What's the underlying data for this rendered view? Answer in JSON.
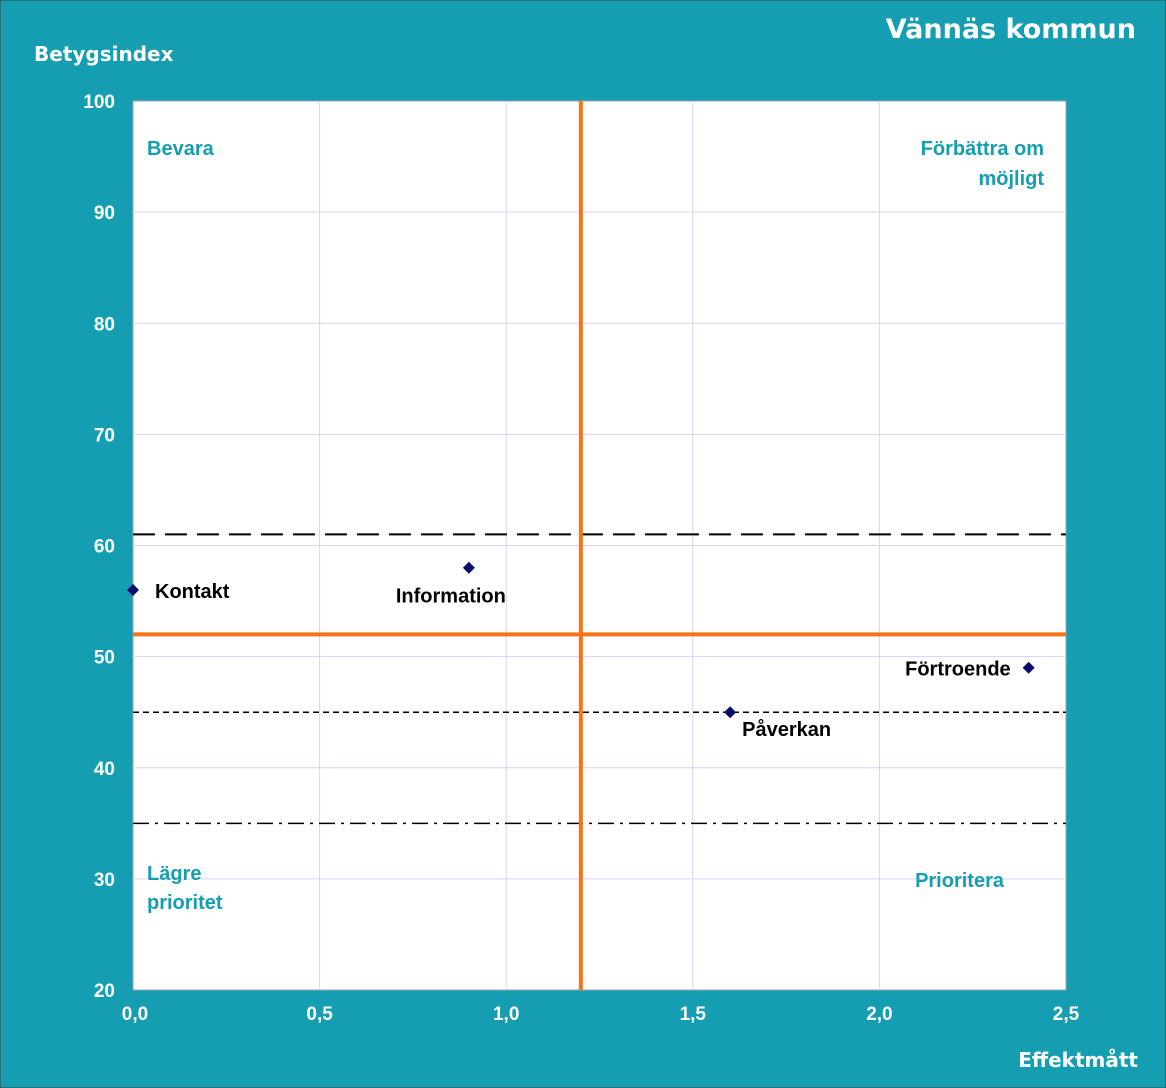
{
  "chart_data": {
    "type": "scatter",
    "title": "Vännäs kommun",
    "xlabel": "Effektmått",
    "ylabel": "Betygsindex",
    "xlim": [
      0,
      2.5
    ],
    "ylim": [
      20,
      100
    ],
    "x_ticks": [
      "0,0",
      "0,5",
      "1,0",
      "1,5",
      "2,0",
      "2,5"
    ],
    "x_tick_values": [
      0,
      0.5,
      1.0,
      1.5,
      2.0,
      2.5
    ],
    "y_ticks": [
      "20",
      "30",
      "40",
      "50",
      "60",
      "70",
      "80",
      "90",
      "100"
    ],
    "y_tick_values": [
      20,
      30,
      40,
      50,
      60,
      70,
      80,
      90,
      100
    ],
    "grid": true,
    "points": [
      {
        "label": "Kontakt",
        "x": 0.0,
        "y": 56
      },
      {
        "label": "Information",
        "x": 0.9,
        "y": 58
      },
      {
        "label": "Påverkan",
        "x": 1.6,
        "y": 45
      },
      {
        "label": "Förtroende",
        "x": 2.4,
        "y": 49
      }
    ],
    "vertical_line": {
      "x": 1.2
    },
    "horizontal_line": {
      "y": 52
    },
    "reference_lines": [
      {
        "y": 61,
        "style": "long-dash"
      },
      {
        "y": 45,
        "style": "short-dash"
      },
      {
        "y": 35,
        "style": "dash-dot"
      }
    ],
    "quadrant_labels": {
      "top_left": "Bevara",
      "top_right_line1": "Förbättra om",
      "top_right_line2": "möjligt",
      "bottom_left_line1": "Lägre",
      "bottom_left_line2": "prioritet",
      "bottom_right": "Prioritera"
    },
    "colors": {
      "background": "#159eb2",
      "plot_area": "#ffffff",
      "quadrant_lines": "#f97316",
      "marker": "#0b0b6e",
      "grid": "#d4d6f0"
    }
  }
}
